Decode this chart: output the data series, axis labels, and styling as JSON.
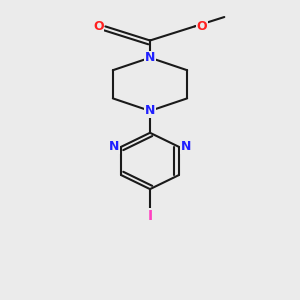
{
  "bg_color": "#ebebeb",
  "bond_color": "#1a1a1a",
  "N_color": "#2020ff",
  "O_color": "#ff2020",
  "I_color": "#ff40c0",
  "line_width": 1.5,
  "font_size": 9,
  "fig_size": [
    3.0,
    3.0
  ],
  "dpi": 100,
  "xlim": [
    0.1,
    0.9
  ],
  "ylim": [
    0.05,
    1.0
  ]
}
